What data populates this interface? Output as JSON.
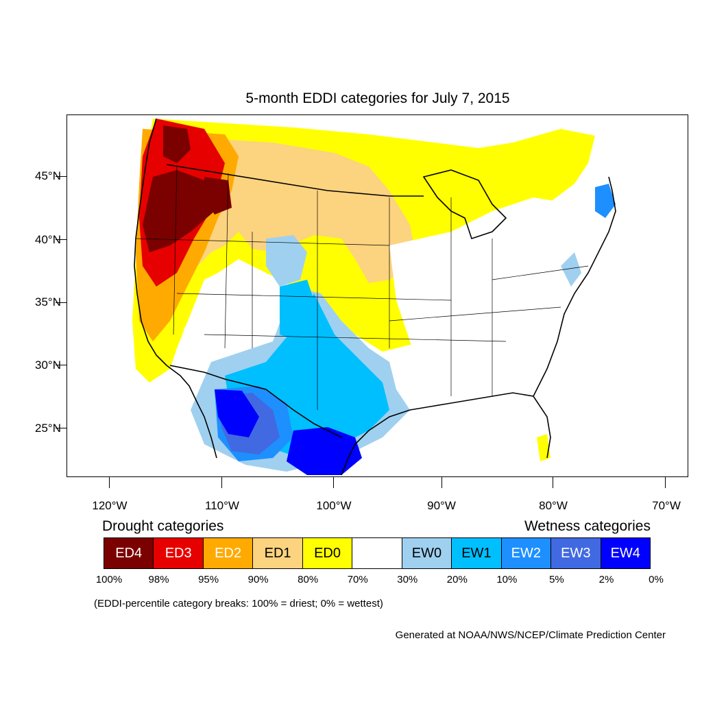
{
  "title": "5-month EDDI categories for July 7, 2015",
  "lat_labels": [
    "45°N",
    "40°N",
    "35°N",
    "30°N",
    "25°N"
  ],
  "lon_labels": [
    "120°W",
    "110°W",
    "100°W",
    "90°W",
    "80°W",
    "70°W"
  ],
  "legend": {
    "drought_heading": "Drought categories",
    "wetness_heading": "Wetness categories",
    "categories": [
      {
        "label": "ED4",
        "color": "#7b0000",
        "text_color": "#ffffff"
      },
      {
        "label": "ED3",
        "color": "#e60000",
        "text_color": "#ffffff"
      },
      {
        "label": "ED2",
        "color": "#ffaa00",
        "text_color": "#ffffff"
      },
      {
        "label": "ED1",
        "color": "#fcd37f",
        "text_color": "#000000"
      },
      {
        "label": "ED0",
        "color": "#ffff00",
        "text_color": "#000000"
      },
      {
        "label": "",
        "color": "#ffffff",
        "text_color": "#000000"
      },
      {
        "label": "EW0",
        "color": "#9fd0ef",
        "text_color": "#000000"
      },
      {
        "label": "EW1",
        "color": "#00bfff",
        "text_color": "#000000"
      },
      {
        "label": "EW2",
        "color": "#1e8fff",
        "text_color": "#ffffff"
      },
      {
        "label": "EW3",
        "color": "#4169e1",
        "text_color": "#ffffff"
      },
      {
        "label": "EW4",
        "color": "#0000ff",
        "text_color": "#ffffff"
      }
    ],
    "percent_breaks": [
      "100%",
      "98%",
      "95%",
      "90%",
      "80%",
      "70%",
      "30%",
      "20%",
      "10%",
      "5%",
      "2%",
      "0%"
    ]
  },
  "note": "(EDDI-percentile category breaks: 100% = driest; 0% = wettest)",
  "credit": "Generated at NOAA/NWS/NCEP/Climate Prediction Center"
}
